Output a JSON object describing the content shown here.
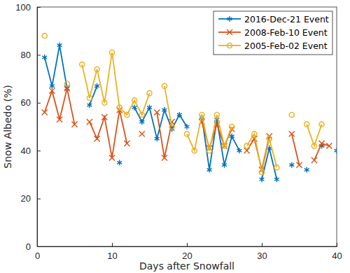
{
  "chart_data": {
    "type": "line",
    "x_label": "Days after Snowfall",
    "y_label": "Snow Albedo (%)",
    "x": [
      1,
      2,
      3,
      4,
      5,
      6,
      7,
      8,
      9,
      10,
      11,
      12,
      13,
      14,
      15,
      16,
      17,
      18,
      19,
      20,
      21,
      22,
      23,
      24,
      25,
      26,
      27,
      28,
      29,
      30,
      31,
      32,
      33,
      34,
      35,
      36,
      37,
      38,
      39,
      40
    ],
    "series": [
      {
        "name": "2016-Dec-21 Event",
        "color": "#0072BD",
        "marker": "asterisk",
        "line_style": "solid",
        "values": [
          79,
          67,
          84,
          66,
          null,
          null,
          59,
          67,
          null,
          null,
          35,
          null,
          58,
          52,
          58,
          45,
          57,
          49,
          55,
          50,
          null,
          54,
          32,
          53,
          34,
          46,
          40,
          null,
          null,
          28,
          41,
          28,
          null,
          34,
          null,
          32,
          null,
          42,
          null,
          40
        ]
      },
      {
        "name": "2008-Feb-10 Event",
        "color": "#D95319",
        "marker": "x",
        "line_style": "solid",
        "values": [
          56,
          65,
          53,
          66,
          51,
          null,
          52,
          45,
          54,
          37,
          57,
          43,
          null,
          47,
          null,
          56,
          37,
          52,
          null,
          null,
          null,
          52,
          41,
          51,
          42,
          49,
          null,
          40,
          45,
          32,
          46,
          null,
          null,
          47,
          34,
          null,
          36,
          43,
          42,
          null
        ]
      },
      {
        "name": "2005-Feb-02 Event",
        "color": "#EDB120",
        "marker": "circle",
        "line_style": "solid",
        "values": [
          88,
          null,
          null,
          68,
          null,
          76,
          62,
          74,
          60,
          81,
          58,
          55,
          61,
          55,
          64,
          null,
          67,
          50,
          null,
          47,
          40,
          55,
          40,
          55,
          42,
          50,
          null,
          42,
          47,
          31,
          45,
          33,
          null,
          55,
          null,
          51,
          42,
          51,
          null,
          null
        ]
      }
    ],
    "xlim": [
      0,
      40
    ],
    "xticks": [
      0,
      10,
      20,
      30,
      40
    ],
    "ylim": [
      0,
      100
    ],
    "yticks": [
      0,
      20,
      40,
      60,
      80,
      100
    ],
    "legend": "upper right",
    "grid": false
  }
}
